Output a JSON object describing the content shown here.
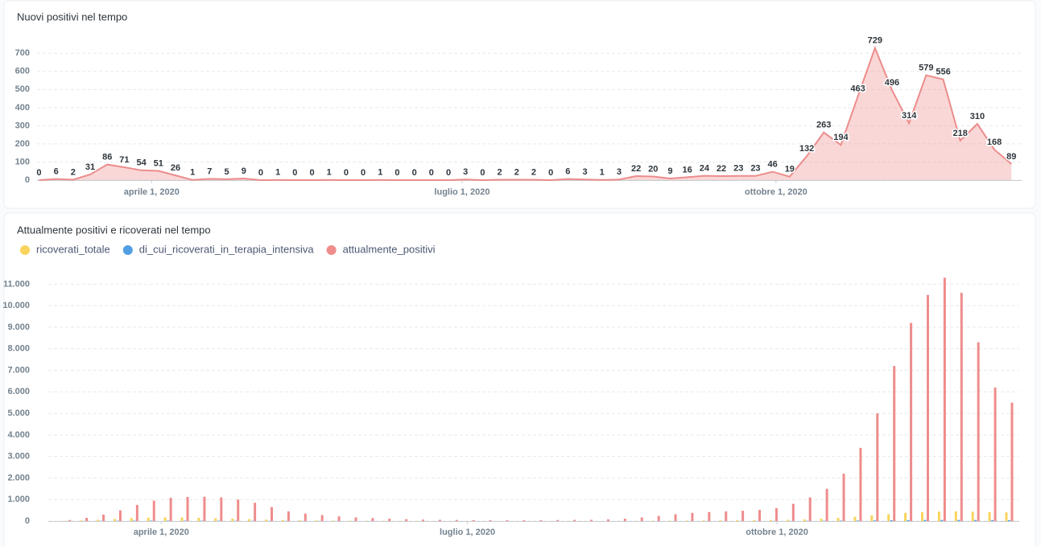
{
  "chart_data": [
    {
      "type": "area",
      "title": "Nuovi positivi nel tempo",
      "color": "#ed8c8c",
      "data_labels": true,
      "grid": true,
      "x": [
        "2020-02-28",
        "2020-03-04",
        "2020-03-09",
        "2020-03-14",
        "2020-03-19",
        "2020-03-24",
        "2020-03-29",
        "2020-04-03",
        "2020-04-08",
        "2020-04-13",
        "2020-04-18",
        "2020-04-23",
        "2020-04-28",
        "2020-05-03",
        "2020-05-08",
        "2020-05-13",
        "2020-05-18",
        "2020-05-23",
        "2020-05-28",
        "2020-06-02",
        "2020-06-07",
        "2020-06-12",
        "2020-06-17",
        "2020-06-22",
        "2020-06-27",
        "2020-07-02",
        "2020-07-07",
        "2020-07-12",
        "2020-07-17",
        "2020-07-22",
        "2020-07-27",
        "2020-08-01",
        "2020-08-06",
        "2020-08-11",
        "2020-08-16",
        "2020-08-21",
        "2020-08-26",
        "2020-08-31",
        "2020-09-05",
        "2020-09-10",
        "2020-09-15",
        "2020-09-20",
        "2020-09-25",
        "2020-09-30",
        "2020-10-05",
        "2020-10-10",
        "2020-10-15",
        "2020-10-20",
        "2020-10-25",
        "2020-10-30",
        "2020-11-04",
        "2020-11-09",
        "2020-11-14",
        "2020-11-19",
        "2020-11-24",
        "2020-11-29",
        "2020-12-04",
        "2020-12-09"
      ],
      "values": [
        0,
        6,
        2,
        31,
        86,
        71,
        54,
        51,
        26,
        1,
        7,
        5,
        9,
        0,
        1,
        0,
        0,
        1,
        0,
        0,
        1,
        0,
        0,
        0,
        0,
        3,
        0,
        2,
        2,
        2,
        0,
        6,
        3,
        1,
        3,
        22,
        20,
        9,
        16,
        24,
        22,
        23,
        23,
        46,
        19,
        132,
        263,
        194,
        463,
        729,
        496,
        314,
        579,
        556,
        218,
        310,
        168,
        89
      ],
      "xlim": [
        "2020-02-26",
        "2020-12-12"
      ],
      "xticks": [
        {
          "value": "2020-04-01",
          "label": "aprile 1, 2020"
        },
        {
          "value": "2020-07-01",
          "label": "luglio 1, 2020"
        },
        {
          "value": "2020-10-01",
          "label": "ottobre 1, 2020"
        }
      ],
      "ylim": [
        0,
        750
      ],
      "yticks": [
        0,
        100,
        200,
        300,
        400,
        500,
        600,
        700
      ]
    },
    {
      "type": "bar",
      "title": "Attualmente positivi e ricoverati nel tempo",
      "legend": true,
      "grid": true,
      "x": [
        "2020-02-28",
        "2020-03-04",
        "2020-03-09",
        "2020-03-14",
        "2020-03-19",
        "2020-03-24",
        "2020-03-29",
        "2020-04-03",
        "2020-04-08",
        "2020-04-13",
        "2020-04-18",
        "2020-04-23",
        "2020-04-28",
        "2020-05-03",
        "2020-05-08",
        "2020-05-13",
        "2020-05-18",
        "2020-05-23",
        "2020-05-28",
        "2020-06-02",
        "2020-06-07",
        "2020-06-12",
        "2020-06-17",
        "2020-06-22",
        "2020-06-27",
        "2020-07-02",
        "2020-07-07",
        "2020-07-12",
        "2020-07-17",
        "2020-07-22",
        "2020-07-27",
        "2020-08-01",
        "2020-08-06",
        "2020-08-11",
        "2020-08-16",
        "2020-08-21",
        "2020-08-26",
        "2020-08-31",
        "2020-09-05",
        "2020-09-10",
        "2020-09-15",
        "2020-09-20",
        "2020-09-25",
        "2020-09-30",
        "2020-10-05",
        "2020-10-10",
        "2020-10-15",
        "2020-10-20",
        "2020-10-25",
        "2020-10-30",
        "2020-11-04",
        "2020-11-09",
        "2020-11-14",
        "2020-11-19",
        "2020-11-24",
        "2020-11-29",
        "2020-12-04",
        "2020-12-09"
      ],
      "series": [
        {
          "name": "ricoverati_totale",
          "color": "#f9d45c",
          "values": [
            0,
            10,
            30,
            60,
            100,
            140,
            160,
            170,
            165,
            150,
            130,
            110,
            90,
            70,
            50,
            40,
            30,
            25,
            20,
            15,
            12,
            10,
            8,
            6,
            5,
            5,
            4,
            4,
            4,
            4,
            5,
            5,
            5,
            6,
            8,
            10,
            15,
            20,
            25,
            30,
            35,
            40,
            45,
            50,
            60,
            80,
            110,
            150,
            200,
            260,
            320,
            380,
            420,
            440,
            450,
            440,
            420,
            400
          ]
        },
        {
          "name": "di_cui_ricoverati_in_terapia_intensiva",
          "color": "#509ee3",
          "values": [
            0,
            2,
            5,
            10,
            15,
            20,
            22,
            22,
            20,
            18,
            15,
            12,
            10,
            8,
            6,
            5,
            4,
            3,
            2,
            2,
            1,
            1,
            1,
            1,
            1,
            1,
            1,
            1,
            1,
            1,
            1,
            1,
            1,
            1,
            1,
            2,
            2,
            3,
            4,
            4,
            5,
            5,
            6,
            7,
            9,
            12,
            16,
            20,
            26,
            32,
            40,
            45,
            50,
            52,
            52,
            50,
            47,
            44
          ]
        },
        {
          "name": "attualmente_positivi",
          "color": "#ef8c8c",
          "values": [
            0,
            50,
            150,
            300,
            500,
            750,
            950,
            1080,
            1120,
            1130,
            1100,
            1000,
            850,
            650,
            450,
            350,
            280,
            220,
            170,
            140,
            110,
            90,
            70,
            60,
            50,
            45,
            40,
            40,
            40,
            45,
            50,
            55,
            60,
            80,
            110,
            170,
            240,
            320,
            380,
            420,
            450,
            480,
            520,
            600,
            800,
            1100,
            1500,
            2200,
            3400,
            5000,
            7200,
            9200,
            10500,
            11300,
            10600,
            8300,
            6200,
            5500
          ]
        }
      ],
      "xlim": [
        "2020-02-26",
        "2020-12-12"
      ],
      "xticks": [
        {
          "value": "2020-04-01",
          "label": "aprile 1, 2020"
        },
        {
          "value": "2020-07-01",
          "label": "luglio 1, 2020"
        },
        {
          "value": "2020-10-01",
          "label": "ottobre 1, 2020"
        }
      ],
      "ylim": [
        0,
        11500
      ],
      "yticks": [
        0,
        {
          "value": 1000,
          "label": "1.000"
        },
        {
          "value": 2000,
          "label": "2.000"
        },
        {
          "value": 3000,
          "label": "3.000"
        },
        {
          "value": 4000,
          "label": "4.000"
        },
        {
          "value": 5000,
          "label": "5.000"
        },
        {
          "value": 6000,
          "label": "6.000"
        },
        {
          "value": 7000,
          "label": "7.000"
        },
        {
          "value": 8000,
          "label": "8.000"
        },
        {
          "value": 9000,
          "label": "9.000"
        },
        {
          "value": 10000,
          "label": "10.000"
        },
        {
          "value": 11000,
          "label": "11.000"
        }
      ]
    }
  ]
}
